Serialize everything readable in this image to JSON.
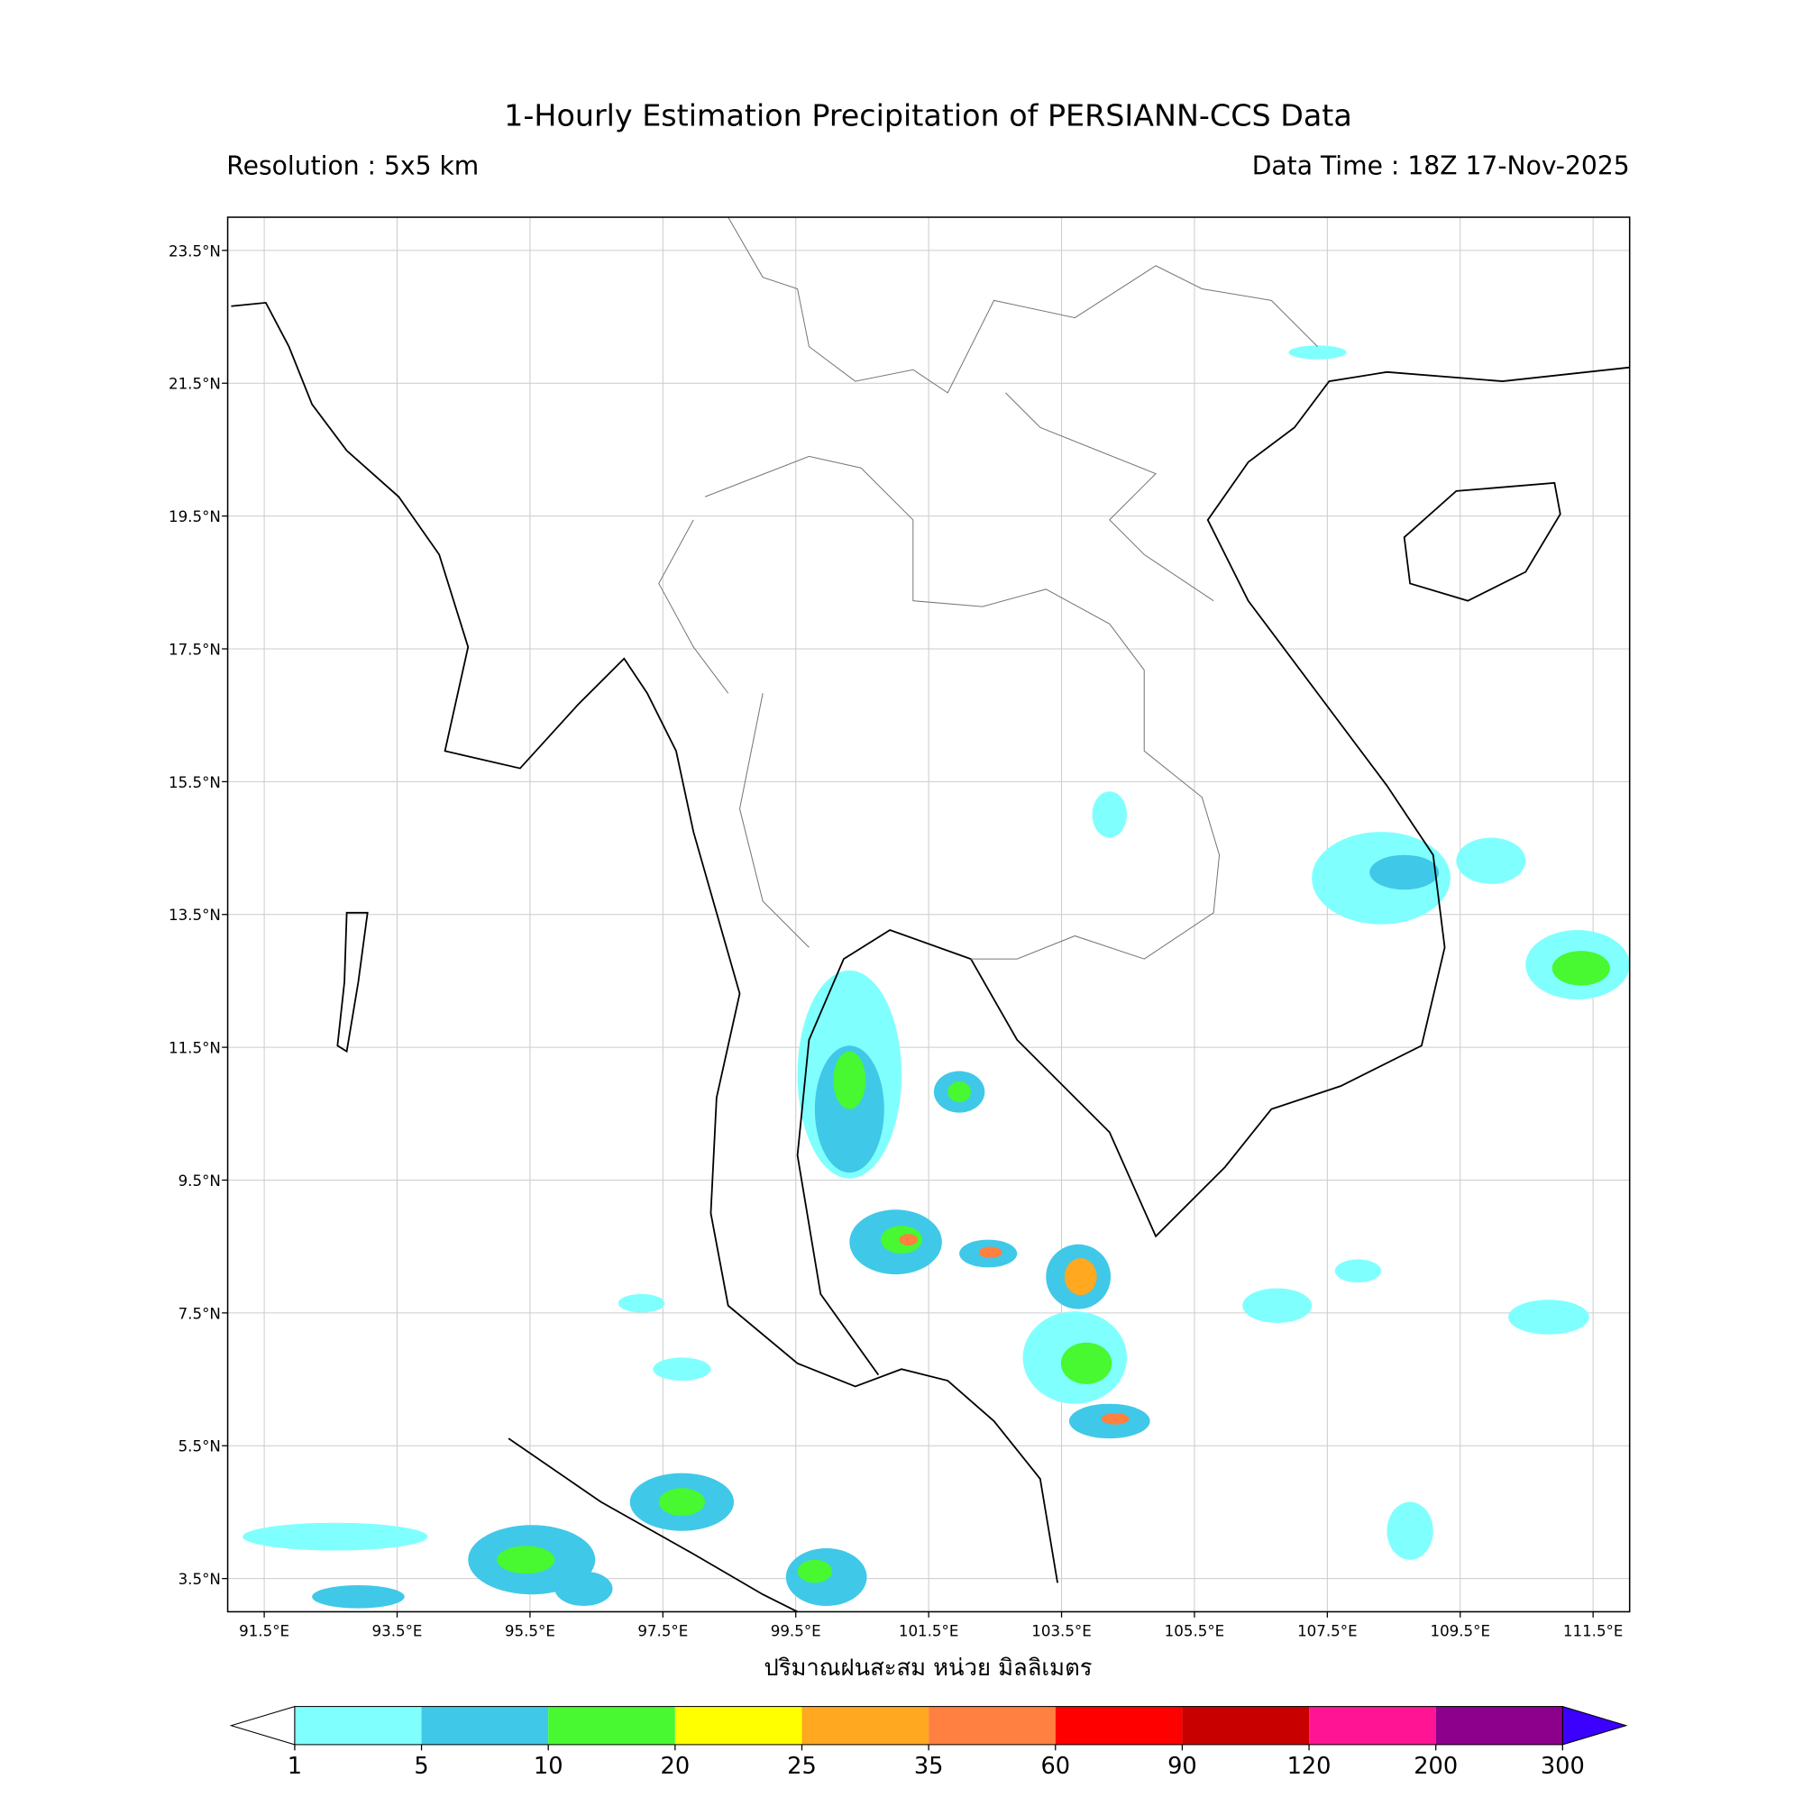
{
  "title": "1-Hourly Estimation Precipitation of PERSIANN-CCS Data",
  "resolution": "Resolution : 5x5 km",
  "data_time": "Data Time : 18Z 17-Nov-2025",
  "xlabel": "ปริมาณฝนสะสม หน่วย มิลลิเมตร",
  "xlim": [
    90.95,
    112.05
  ],
  "ylim": [
    3.0,
    24.0
  ],
  "lon_ticks": [
    {
      "value": 91.5,
      "label": "91.5°E"
    },
    {
      "value": 93.5,
      "label": "93.5°E"
    },
    {
      "value": 95.5,
      "label": "95.5°E"
    },
    {
      "value": 97.5,
      "label": "97.5°E"
    },
    {
      "value": 99.5,
      "label": "99.5°E"
    },
    {
      "value": 101.5,
      "label": "101.5°E"
    },
    {
      "value": 103.5,
      "label": "103.5°E"
    },
    {
      "value": 105.5,
      "label": "105.5°E"
    },
    {
      "value": 107.5,
      "label": "107.5°E"
    },
    {
      "value": 109.5,
      "label": "109.5°E"
    },
    {
      "value": 111.5,
      "label": "111.5°E"
    }
  ],
  "lat_ticks": [
    {
      "value": 23.5,
      "label": "23.5°N"
    },
    {
      "value": 21.5,
      "label": "21.5°N"
    },
    {
      "value": 19.5,
      "label": "19.5°N"
    },
    {
      "value": 17.5,
      "label": "17.5°N"
    },
    {
      "value": 15.5,
      "label": "15.5°N"
    },
    {
      "value": 13.5,
      "label": "13.5°N"
    },
    {
      "value": 11.5,
      "label": "11.5°N"
    },
    {
      "value": 9.5,
      "label": "9.5°N"
    },
    {
      "value": 7.5,
      "label": "7.5°N"
    },
    {
      "value": 5.5,
      "label": "5.5°N"
    },
    {
      "value": 3.5,
      "label": "3.5°N"
    }
  ],
  "colorbar": {
    "levels": [
      1,
      5,
      10,
      20,
      25,
      35,
      60,
      90,
      120,
      200,
      300
    ],
    "colors": [
      "#80ffff",
      "#40c8e8",
      "#48f830",
      "#ffff00",
      "#ffa820",
      "#ff8040",
      "#ff0000",
      "#c80000",
      "#ff1493",
      "#8c008c"
    ],
    "under_color": "#ffffff",
    "over_color": "#3c00ff"
  }
}
